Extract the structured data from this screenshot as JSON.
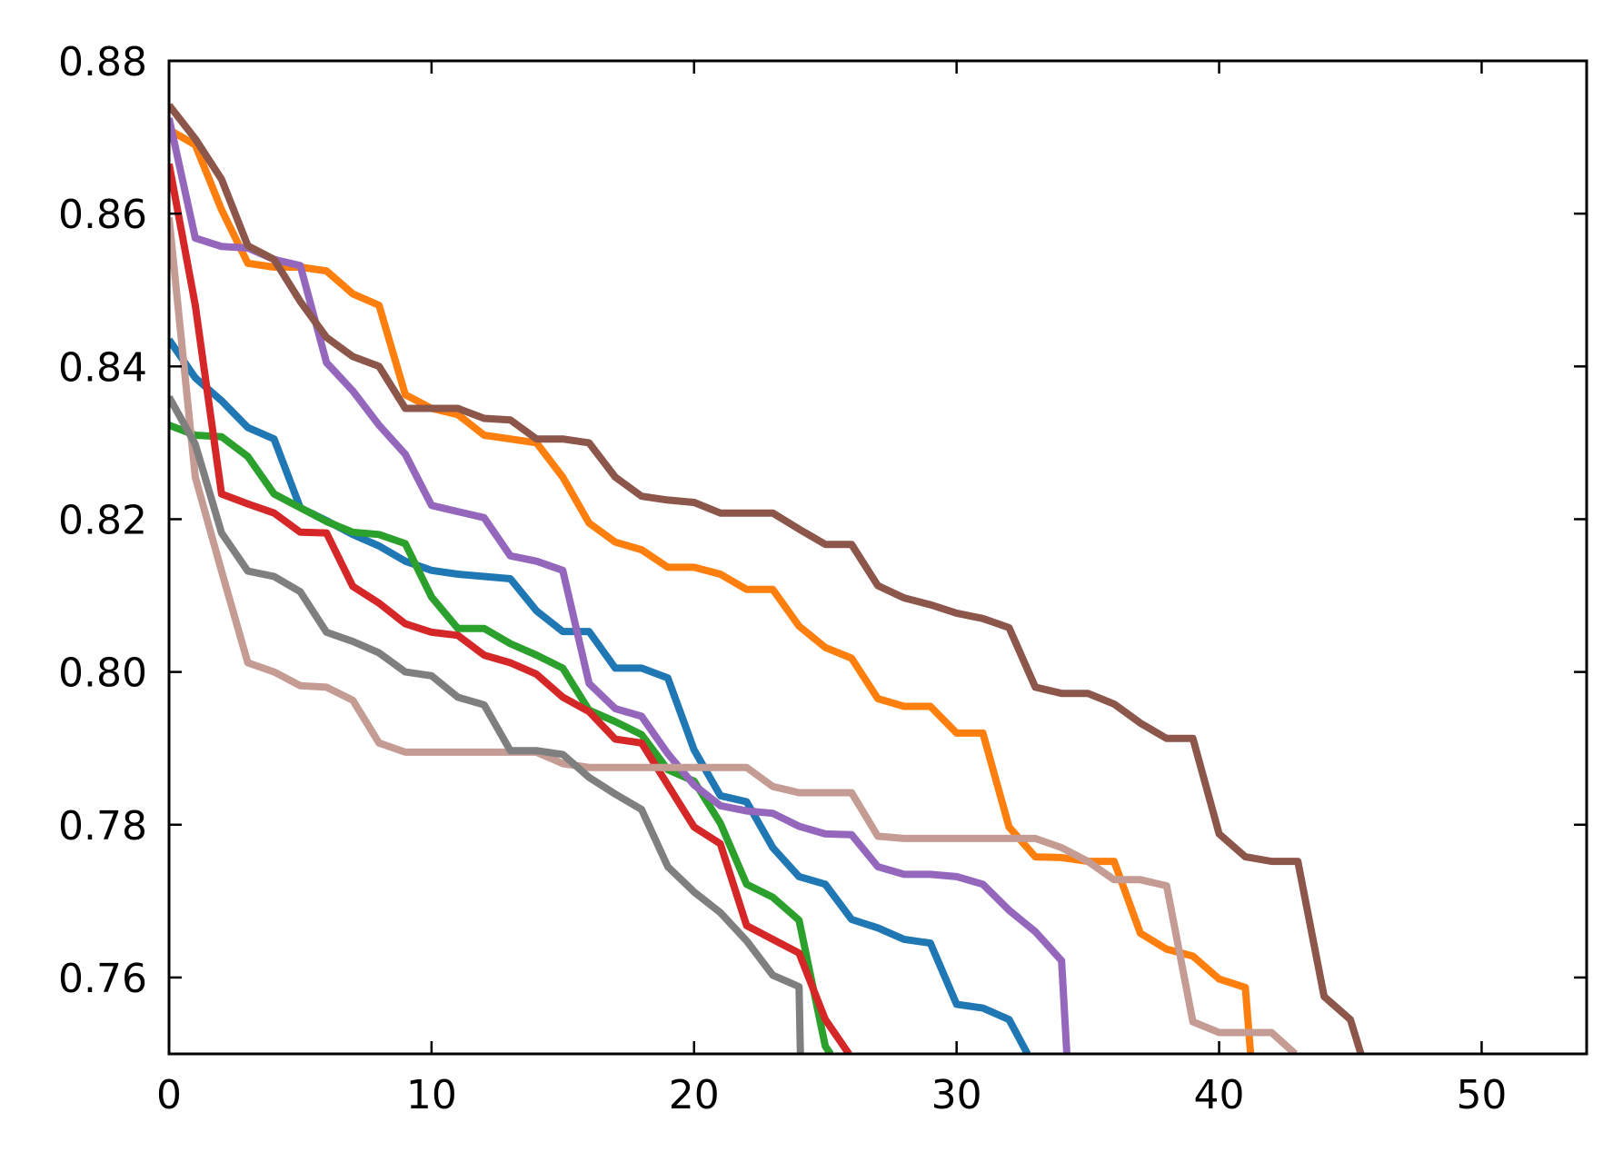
{
  "chart_data": {
    "type": "line",
    "title": "",
    "xlabel": "",
    "ylabel": "",
    "xlim": [
      0,
      54
    ],
    "ylim": [
      0.75,
      0.88
    ],
    "x_ticks": [
      0,
      10,
      20,
      30,
      40,
      50
    ],
    "x_tick_labels": [
      "0",
      "10",
      "20",
      "30",
      "40",
      "50"
    ],
    "y_ticks": [
      0.76,
      0.78,
      0.8,
      0.82,
      0.84,
      0.86,
      0.88
    ],
    "y_tick_labels": [
      "0.76",
      "0.78",
      "0.80",
      "0.82",
      "0.84",
      "0.86",
      "0.88"
    ],
    "grid": false,
    "legend": "none",
    "series": [
      {
        "color": "#1f77b4",
        "points": [
          [
            0,
            0.8435
          ],
          [
            1,
            0.8385
          ],
          [
            2,
            0.8355
          ],
          [
            3,
            0.832
          ],
          [
            4,
            0.8305
          ],
          [
            5,
            0.8215
          ],
          [
            6,
            0.8198
          ],
          [
            7,
            0.818
          ],
          [
            8,
            0.8165
          ],
          [
            9,
            0.8145
          ],
          [
            10,
            0.8133
          ],
          [
            11,
            0.8128
          ],
          [
            12,
            0.8125
          ],
          [
            13,
            0.8122
          ],
          [
            14,
            0.808
          ],
          [
            15,
            0.8053
          ],
          [
            16,
            0.8053
          ],
          [
            17,
            0.8005
          ],
          [
            18,
            0.8005
          ],
          [
            19,
            0.7992
          ],
          [
            20,
            0.7898
          ],
          [
            21,
            0.7838
          ],
          [
            22,
            0.783
          ],
          [
            23,
            0.777
          ],
          [
            24,
            0.7732
          ],
          [
            25,
            0.7722
          ],
          [
            26,
            0.7676
          ],
          [
            27,
            0.7665
          ],
          [
            28,
            0.765
          ],
          [
            29,
            0.7645
          ],
          [
            30,
            0.7565
          ],
          [
            31,
            0.756
          ],
          [
            32,
            0.7545
          ],
          [
            32.7,
            0.75
          ]
        ]
      },
      {
        "color": "#ff7f0e",
        "points": [
          [
            0,
            0.871
          ],
          [
            1,
            0.869
          ],
          [
            2,
            0.8605
          ],
          [
            3,
            0.8535
          ],
          [
            4,
            0.853
          ],
          [
            5,
            0.853
          ],
          [
            6,
            0.8525
          ],
          [
            7,
            0.8495
          ],
          [
            8,
            0.848
          ],
          [
            9,
            0.8363
          ],
          [
            10,
            0.8345
          ],
          [
            11,
            0.8337
          ],
          [
            12,
            0.831
          ],
          [
            13,
            0.8305
          ],
          [
            14,
            0.83
          ],
          [
            15,
            0.8255
          ],
          [
            16,
            0.8195
          ],
          [
            17,
            0.817
          ],
          [
            18,
            0.816
          ],
          [
            19,
            0.8137
          ],
          [
            20,
            0.8137
          ],
          [
            21,
            0.8128
          ],
          [
            22,
            0.8108
          ],
          [
            23,
            0.8108
          ],
          [
            24,
            0.806
          ],
          [
            25,
            0.8032
          ],
          [
            26,
            0.8018
          ],
          [
            27,
            0.7965
          ],
          [
            28,
            0.7955
          ],
          [
            29,
            0.7955
          ],
          [
            30,
            0.792
          ],
          [
            31,
            0.792
          ],
          [
            32,
            0.7797
          ],
          [
            33,
            0.7758
          ],
          [
            34,
            0.7757
          ],
          [
            35,
            0.7752
          ],
          [
            36,
            0.7752
          ],
          [
            37,
            0.7658
          ],
          [
            38,
            0.7637
          ],
          [
            39,
            0.7628
          ],
          [
            40,
            0.7598
          ],
          [
            41,
            0.7587
          ],
          [
            41.2,
            0.75
          ]
        ]
      },
      {
        "color": "#2ca02c",
        "points": [
          [
            0,
            0.8323
          ],
          [
            1,
            0.831
          ],
          [
            2,
            0.8308
          ],
          [
            3,
            0.8282
          ],
          [
            4,
            0.8233
          ],
          [
            5,
            0.8215
          ],
          [
            6,
            0.8197
          ],
          [
            7,
            0.8183
          ],
          [
            8,
            0.818
          ],
          [
            9,
            0.8168
          ],
          [
            10,
            0.8098
          ],
          [
            11,
            0.8057
          ],
          [
            12,
            0.8057
          ],
          [
            13,
            0.8037
          ],
          [
            14,
            0.8022
          ],
          [
            15,
            0.8005
          ],
          [
            16,
            0.795
          ],
          [
            17,
            0.7935
          ],
          [
            18,
            0.7918
          ],
          [
            19,
            0.7872
          ],
          [
            20,
            0.7857
          ],
          [
            21,
            0.7802
          ],
          [
            22,
            0.7722
          ],
          [
            23,
            0.7705
          ],
          [
            24,
            0.7675
          ],
          [
            25,
            0.751
          ],
          [
            25.2,
            0.75
          ]
        ]
      },
      {
        "color": "#d62728",
        "points": [
          [
            0,
            0.8665
          ],
          [
            1,
            0.848
          ],
          [
            2,
            0.8233
          ],
          [
            3,
            0.822
          ],
          [
            4,
            0.8208
          ],
          [
            5,
            0.8183
          ],
          [
            6,
            0.8182
          ],
          [
            7,
            0.8112
          ],
          [
            8,
            0.809
          ],
          [
            9,
            0.8063
          ],
          [
            10,
            0.8052
          ],
          [
            11,
            0.8048
          ],
          [
            12,
            0.8022
          ],
          [
            13,
            0.8012
          ],
          [
            14,
            0.7997
          ],
          [
            15,
            0.7967
          ],
          [
            16,
            0.7948
          ],
          [
            17,
            0.7912
          ],
          [
            18,
            0.7907
          ],
          [
            19,
            0.7852
          ],
          [
            20,
            0.7797
          ],
          [
            21,
            0.7775
          ],
          [
            22,
            0.7668
          ],
          [
            23,
            0.765
          ],
          [
            24,
            0.7632
          ],
          [
            25,
            0.7545
          ],
          [
            25.9,
            0.75
          ]
        ]
      },
      {
        "color": "#9467bd",
        "points": [
          [
            0,
            0.8725
          ],
          [
            1,
            0.8568
          ],
          [
            2,
            0.8557
          ],
          [
            3,
            0.8555
          ],
          [
            4,
            0.854
          ],
          [
            5,
            0.8532
          ],
          [
            6,
            0.8405
          ],
          [
            7,
            0.8368
          ],
          [
            8,
            0.8323
          ],
          [
            9,
            0.8285
          ],
          [
            10,
            0.8218
          ],
          [
            11,
            0.821
          ],
          [
            12,
            0.8202
          ],
          [
            13,
            0.8152
          ],
          [
            14,
            0.8145
          ],
          [
            15,
            0.8133
          ],
          [
            16,
            0.7985
          ],
          [
            17,
            0.7952
          ],
          [
            18,
            0.7942
          ],
          [
            19,
            0.7893
          ],
          [
            20,
            0.7852
          ],
          [
            21,
            0.7825
          ],
          [
            22,
            0.7818
          ],
          [
            23,
            0.7815
          ],
          [
            24,
            0.7798
          ],
          [
            25,
            0.7788
          ],
          [
            26,
            0.7787
          ],
          [
            27,
            0.7745
          ],
          [
            28,
            0.7735
          ],
          [
            29,
            0.7735
          ],
          [
            30,
            0.7732
          ],
          [
            31,
            0.7722
          ],
          [
            32,
            0.7688
          ],
          [
            33,
            0.766
          ],
          [
            34,
            0.7622
          ],
          [
            34.2,
            0.75
          ]
        ]
      },
      {
        "color": "#8c564b",
        "points": [
          [
            0,
            0.8742
          ],
          [
            1,
            0.8698
          ],
          [
            2,
            0.8645
          ],
          [
            3,
            0.8558
          ],
          [
            4,
            0.854
          ],
          [
            5,
            0.8485
          ],
          [
            6,
            0.8438
          ],
          [
            7,
            0.8413
          ],
          [
            8,
            0.84
          ],
          [
            9,
            0.8345
          ],
          [
            10,
            0.8345
          ],
          [
            11,
            0.8345
          ],
          [
            12,
            0.8332
          ],
          [
            13,
            0.833
          ],
          [
            14,
            0.8305
          ],
          [
            15,
            0.8305
          ],
          [
            16,
            0.83
          ],
          [
            17,
            0.8255
          ],
          [
            18,
            0.823
          ],
          [
            19,
            0.8225
          ],
          [
            20,
            0.8222
          ],
          [
            21,
            0.8208
          ],
          [
            22,
            0.8208
          ],
          [
            23,
            0.8208
          ],
          [
            24,
            0.8187
          ],
          [
            25,
            0.8167
          ],
          [
            26,
            0.8167
          ],
          [
            27,
            0.8113
          ],
          [
            28,
            0.8097
          ],
          [
            29,
            0.8088
          ],
          [
            30,
            0.8077
          ],
          [
            31,
            0.807
          ],
          [
            32,
            0.8058
          ],
          [
            33,
            0.798
          ],
          [
            34,
            0.7972
          ],
          [
            35,
            0.7972
          ],
          [
            36,
            0.7958
          ],
          [
            37,
            0.7933
          ],
          [
            38,
            0.7913
          ],
          [
            39,
            0.7913
          ],
          [
            40,
            0.7788
          ],
          [
            41,
            0.7758
          ],
          [
            42,
            0.7752
          ],
          [
            43,
            0.7752
          ],
          [
            44,
            0.7575
          ],
          [
            45,
            0.7545
          ],
          [
            45.4,
            0.75
          ]
        ]
      },
      {
        "color": "#c49c94",
        "points": [
          [
            0,
            0.8595
          ],
          [
            1,
            0.8255
          ],
          [
            2,
            0.8132
          ],
          [
            3,
            0.8012
          ],
          [
            4,
            0.8
          ],
          [
            5,
            0.7982
          ],
          [
            6,
            0.798
          ],
          [
            7,
            0.7963
          ],
          [
            8,
            0.7907
          ],
          [
            9,
            0.7895
          ],
          [
            10,
            0.7895
          ],
          [
            11,
            0.7895
          ],
          [
            12,
            0.7895
          ],
          [
            13,
            0.7895
          ],
          [
            14,
            0.7895
          ],
          [
            15,
            0.788
          ],
          [
            16,
            0.7875
          ],
          [
            17,
            0.7875
          ],
          [
            18,
            0.7875
          ],
          [
            19,
            0.7875
          ],
          [
            20,
            0.7875
          ],
          [
            21,
            0.7875
          ],
          [
            22,
            0.7875
          ],
          [
            23,
            0.785
          ],
          [
            24,
            0.7842
          ],
          [
            25,
            0.7842
          ],
          [
            26,
            0.7842
          ],
          [
            27,
            0.7785
          ],
          [
            28,
            0.7782
          ],
          [
            29,
            0.7782
          ],
          [
            30,
            0.7782
          ],
          [
            31,
            0.7782
          ],
          [
            32,
            0.7782
          ],
          [
            33,
            0.7782
          ],
          [
            34,
            0.777
          ],
          [
            35,
            0.7752
          ],
          [
            36,
            0.7728
          ],
          [
            37,
            0.7728
          ],
          [
            38,
            0.772
          ],
          [
            39,
            0.7542
          ],
          [
            40,
            0.7528
          ],
          [
            41,
            0.7528
          ],
          [
            42,
            0.7528
          ],
          [
            42.9,
            0.75
          ]
        ]
      },
      {
        "color": "#7f7f7f",
        "points": [
          [
            0,
            0.836
          ],
          [
            1,
            0.8298
          ],
          [
            2,
            0.8182
          ],
          [
            3,
            0.8132
          ],
          [
            4,
            0.8125
          ],
          [
            5,
            0.8105
          ],
          [
            6,
            0.8052
          ],
          [
            7,
            0.804
          ],
          [
            8,
            0.8025
          ],
          [
            9,
            0.8
          ],
          [
            10,
            0.7995
          ],
          [
            11,
            0.7967
          ],
          [
            12,
            0.7957
          ],
          [
            13,
            0.7897
          ],
          [
            14,
            0.7897
          ],
          [
            15,
            0.7892
          ],
          [
            16,
            0.7862
          ],
          [
            17,
            0.784
          ],
          [
            18,
            0.782
          ],
          [
            19,
            0.7745
          ],
          [
            20,
            0.7712
          ],
          [
            21,
            0.7685
          ],
          [
            22,
            0.7648
          ],
          [
            23,
            0.7603
          ],
          [
            24,
            0.7588
          ],
          [
            24.05,
            0.75
          ]
        ]
      }
    ]
  }
}
